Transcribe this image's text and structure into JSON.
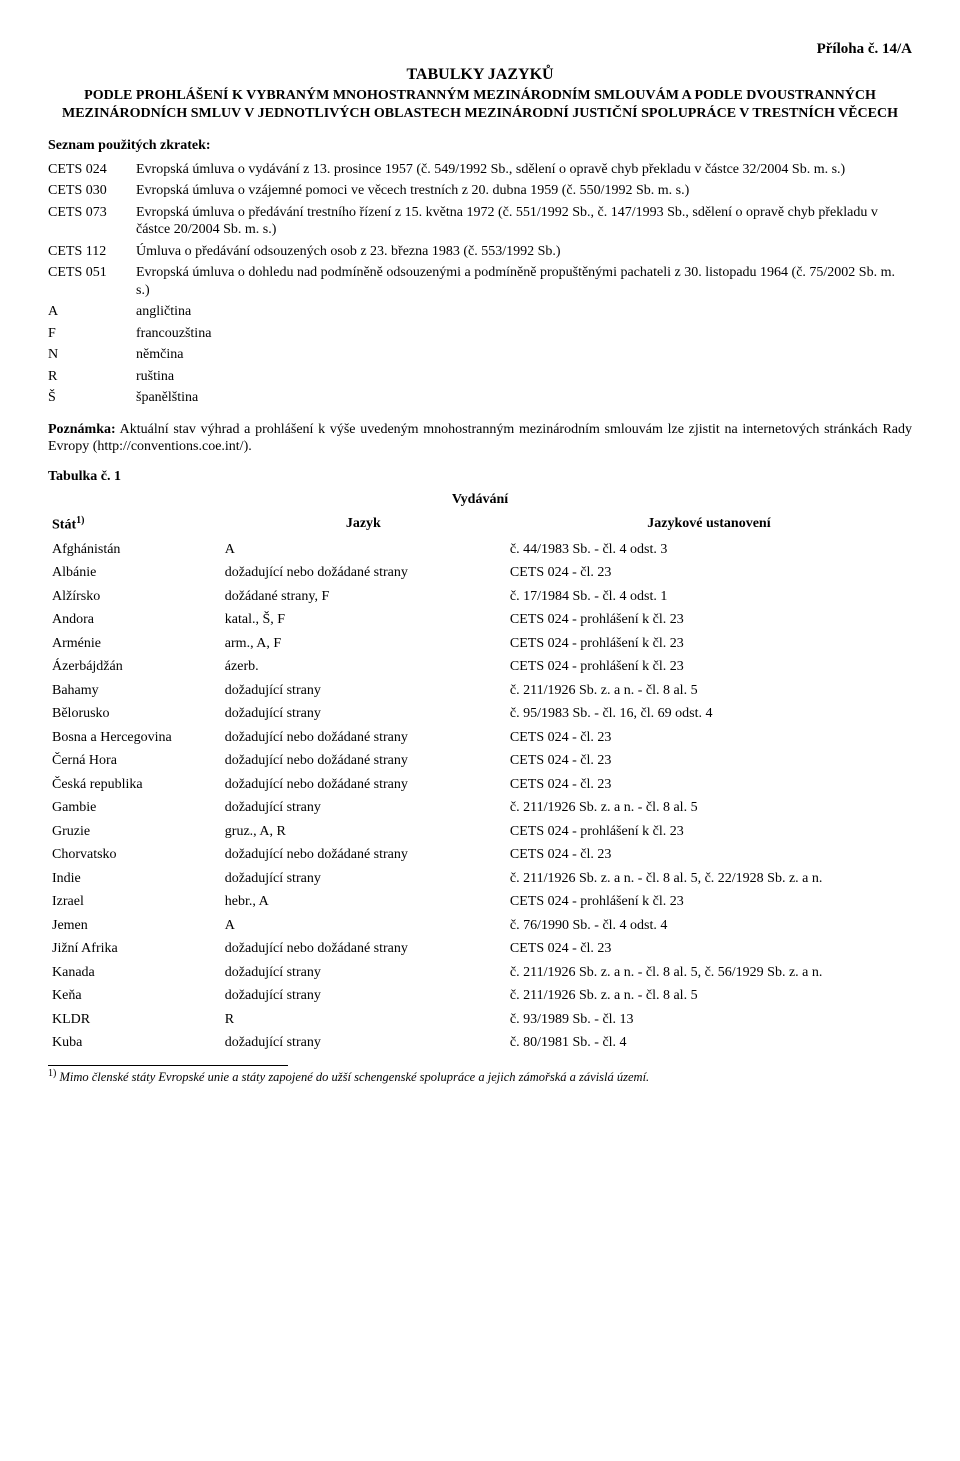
{
  "header_right": "Příloha č. 14/A",
  "title": "TABULKY JAZYKŮ",
  "subtitle": "PODLE PROHLÁŠENÍ K VYBRANÝM MNOHOSTRANNÝM MEZINÁRODNÍM SMLOUVÁM A PODLE DVOUSTRANNÝCH MEZINÁRODNÍCH SMLUV V JEDNOTLIVÝCH OBLASTECH MEZINÁRODNÍ JUSTIČNÍ SPOLUPRÁCE V TRESTNÍCH VĚCECH",
  "abbrev_label": "Seznam použitých zkratek:",
  "abbrev": [
    {
      "code": "CETS 024",
      "text": "Evropská úmluva o vydávání z 13. prosince 1957 (č. 549/1992 Sb., sdělení o opravě chyb překladu v částce 32/2004 Sb. m. s.)"
    },
    {
      "code": "CETS 030",
      "text": "Evropská úmluva o vzájemné pomoci ve věcech trestních z 20. dubna 1959 (č. 550/1992 Sb. m. s.)"
    },
    {
      "code": "CETS 073",
      "text": "Evropská úmluva o předávání trestního řízení z 15. května 1972 (č. 551/1992 Sb., č. 147/1993 Sb., sdělení o opravě chyb překladu v částce 20/2004 Sb. m. s.)"
    },
    {
      "code": "CETS 112",
      "text": "Úmluva o předávání odsouzených osob z 23. března 1983 (č. 553/1992 Sb.)"
    },
    {
      "code": "CETS 051",
      "text": "Evropská úmluva o dohledu nad podmíněně odsouzenými a podmíněně propuštěnými pachateli z 30. listopadu 1964 (č. 75/2002 Sb. m. s.)"
    },
    {
      "code": "A",
      "text": "angličtina"
    },
    {
      "code": "F",
      "text": "francouzština"
    },
    {
      "code": "N",
      "text": "němčina"
    },
    {
      "code": "R",
      "text": "ruština"
    },
    {
      "code": "Š",
      "text": "španělština"
    }
  ],
  "note_label": "Poznámka:",
  "note_text": " Aktuální stav výhrad a prohlášení k výše uvedeným mnohostranným mezinárodním smlouvám lze zjistit na internetových stránkách Rady Evropy (http://conventions.coe.int/).",
  "table_label": "Tabulka č. 1",
  "table_title": "Vydávání",
  "columns": {
    "c1": "Stát",
    "c1_sup": "1)",
    "c2": "Jazyk",
    "c3": "Jazykové ustanovení"
  },
  "rows": [
    {
      "a": "Afghánistán",
      "b": "A",
      "c": "č. 44/1983 Sb. - čl. 4 odst. 3"
    },
    {
      "a": "Albánie",
      "b": "dožadující nebo dožádané strany",
      "c": "CETS 024 - čl. 23"
    },
    {
      "a": "Alžírsko",
      "b": "dožádané strany, F",
      "c": "č. 17/1984 Sb. - čl. 4 odst. 1"
    },
    {
      "a": "Andora",
      "b": "katal., Š, F",
      "c": "CETS 024 - prohlášení k čl. 23"
    },
    {
      "a": "Arménie",
      "b": "arm., A, F",
      "c": "CETS 024 - prohlášení k čl. 23"
    },
    {
      "a": "Ázerbájdžán",
      "b": "ázerb.",
      "c": "CETS 024 - prohlášení k čl. 23"
    },
    {
      "a": "Bahamy",
      "b": "dožadující strany",
      "c": "č. 211/1926 Sb. z. a n. - čl. 8 al. 5"
    },
    {
      "a": "Bělorusko",
      "b": "dožadující strany",
      "c": "č. 95/1983 Sb. - čl. 16, čl. 69 odst. 4"
    },
    {
      "a": "Bosna a Hercegovina",
      "b": "dožadující nebo dožádané strany",
      "c": "CETS 024 - čl. 23"
    },
    {
      "a": "Černá Hora",
      "b": "dožadující nebo dožádané strany",
      "c": "CETS 024 - čl. 23"
    },
    {
      "a": "Česká republika",
      "b": "dožadující nebo dožádané strany",
      "c": "CETS 024 - čl. 23"
    },
    {
      "a": "Gambie",
      "b": "dožadující strany",
      "c": "č. 211/1926 Sb. z. a n. - čl. 8 al. 5"
    },
    {
      "a": "Gruzie",
      "b": "gruz., A, R",
      "c": "CETS 024 - prohlášení k čl. 23"
    },
    {
      "a": "Chorvatsko",
      "b": "dožadující nebo dožádané strany",
      "c": "CETS 024 - čl. 23"
    },
    {
      "a": "Indie",
      "b": "dožadující strany",
      "c": "č. 211/1926 Sb. z. a n. - čl. 8 al. 5, č. 22/1928 Sb. z. a n."
    },
    {
      "a": "Izrael",
      "b": "hebr., A",
      "c": "CETS 024 - prohlášení k čl. 23"
    },
    {
      "a": "Jemen",
      "b": "A",
      "c": "č. 76/1990 Sb. - čl. 4 odst. 4"
    },
    {
      "a": "Jižní Afrika",
      "b": "dožadující nebo dožádané strany",
      "c": "CETS 024 - čl. 23"
    },
    {
      "a": "Kanada",
      "b": "dožadující strany",
      "c": "č. 211/1926 Sb. z. a n. - čl. 8 al. 5, č. 56/1929 Sb. z. a n."
    },
    {
      "a": "Keňa",
      "b": "dožadující strany",
      "c": "č. 211/1926 Sb. z. a n. - čl. 8 al. 5"
    },
    {
      "a": "KLDR",
      "b": "R",
      "c": "č. 93/1989 Sb. - čl. 13"
    },
    {
      "a": "Kuba",
      "b": "dožadující strany",
      "c": "č. 80/1981 Sb. - čl. 4"
    }
  ],
  "footnote_marker": "1)",
  "footnote_text": " Mimo členské státy Evropské unie a státy zapojené do užší schengenské spolupráce a jejich zámořská a závislá území."
}
